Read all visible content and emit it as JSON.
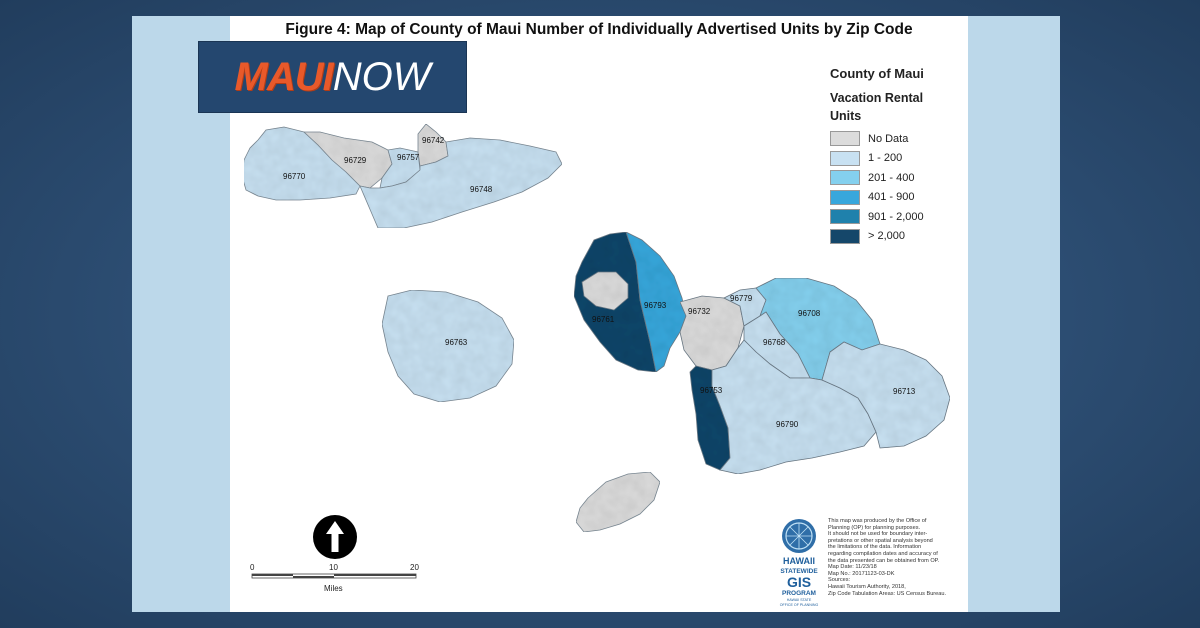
{
  "figure": {
    "title": "Figure 4: Map of County of Maui Number of Individually Advertised Units by Zip Code"
  },
  "brand": {
    "part1": "MAUI",
    "part2": "NOW"
  },
  "legend": {
    "title": "County of Maui",
    "subtitle": "Vacation Rental Units",
    "items": [
      {
        "label": "No Data",
        "color": "#dcdcdc"
      },
      {
        "label": "1 - 200",
        "color": "#c8e1f2"
      },
      {
        "label": "201 - 400",
        "color": "#84d0ee"
      },
      {
        "label": "401 - 900",
        "color": "#38a7dc"
      },
      {
        "label": "901 - 2,000",
        "color": "#1f81ac"
      },
      {
        "label": "> 2,000",
        "color": "#15476a"
      }
    ]
  },
  "zip_labels": {
    "z96742": "96742",
    "z96729": "96729",
    "z96757": "96757",
    "z96770": "96770",
    "z96748": "96748",
    "z96763": "96763",
    "z96761": "96761",
    "z96793": "96793",
    "z96732": "96732",
    "z96779": "96779",
    "z96708": "96708",
    "z96768": "96768",
    "z96753": "96753",
    "z96713": "96713",
    "z96790": "96790"
  },
  "zip_categories": {
    "96770": "1 - 200",
    "96729": "No Data",
    "96757": "1 - 200",
    "96742": "No Data",
    "96748": "1 - 200",
    "96763": "1 - 200",
    "96761": "> 2,000",
    "96793": "401 - 900",
    "96732": "No Data",
    "96779": "1 - 200",
    "96708": "201 - 400",
    "96768": "1 - 200",
    "96753": "> 2,000",
    "96713": "1 - 200",
    "96790": "1 - 200"
  },
  "scale": {
    "ticks": [
      "0",
      "10",
      "20"
    ],
    "unit": "Miles"
  },
  "badge": {
    "line1": "HAWAII",
    "line2": "STATEWIDE",
    "line3": "GIS",
    "line4": "PROGRAM",
    "line5": "HAWAII STATE",
    "line6": "OFFICE OF PLANNING"
  },
  "disclaimer": {
    "lines": [
      "This map was produced by the Office of",
      "Planning (OP) for planning purposes.",
      "It should not be used for boundary inter-",
      "pretations or other spatial analysis beyond",
      "the limitations of the data. Information",
      "regarding compilation dates and accuracy of",
      "the data presented can be obtained from OP.",
      "Map Date: 11/23/18",
      "Map No.: 20171123-03-DK",
      "Sources:",
      "Hawaii Tourism Authority, 2018,",
      "Zip Code Tabulation Areas: US Census Bureau."
    ]
  }
}
